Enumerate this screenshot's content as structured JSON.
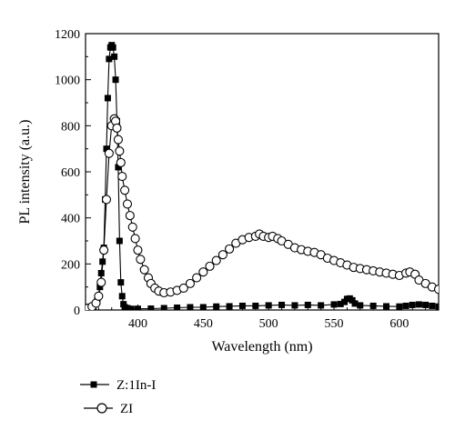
{
  "chart_data": {
    "type": "line",
    "xlabel": "Wavelength (nm)",
    "ylabel": "PL intensity (a.u.)",
    "xlim": [
      360,
      630
    ],
    "ylim": [
      0,
      1200
    ],
    "x_ticks": [
      400,
      450,
      500,
      550,
      600
    ],
    "y_ticks": [
      0,
      200,
      400,
      600,
      800,
      1000,
      1200
    ],
    "grid": false,
    "legend_position": "bottom-left",
    "series": [
      {
        "name": "Z:1In-I",
        "marker": "filled-square",
        "x": [
          362,
          366,
          369,
          371,
          372,
          373,
          374,
          375,
          376,
          377,
          378,
          379,
          380,
          381,
          382,
          383,
          384,
          385,
          386,
          387,
          388,
          389,
          390,
          392,
          395,
          400,
          410,
          420,
          430,
          440,
          450,
          460,
          470,
          480,
          490,
          500,
          510,
          520,
          530,
          540,
          550,
          555,
          558,
          560,
          562,
          564,
          566,
          570,
          580,
          590,
          600,
          605,
          610,
          615,
          620,
          625,
          630
        ],
        "y": [
          3,
          8,
          40,
          100,
          160,
          210,
          270,
          480,
          700,
          920,
          1090,
          1140,
          1150,
          1140,
          1100,
          1000,
          820,
          620,
          300,
          120,
          60,
          25,
          12,
          8,
          5,
          5,
          6,
          8,
          10,
          12,
          12,
          15,
          16,
          18,
          18,
          20,
          22,
          20,
          22,
          20,
          24,
          26,
          35,
          48,
          50,
          42,
          28,
          20,
          18,
          16,
          15,
          18,
          22,
          24,
          22,
          18,
          15
        ]
      },
      {
        "name": "ZI",
        "marker": "open-circle",
        "x": [
          362,
          365,
          368,
          370,
          372,
          374,
          376,
          378,
          380,
          382,
          383,
          384,
          385,
          386,
          387,
          388,
          390,
          392,
          394,
          396,
          398,
          400,
          402,
          405,
          408,
          410,
          413,
          416,
          420,
          425,
          430,
          435,
          440,
          445,
          450,
          455,
          460,
          465,
          470,
          475,
          480,
          485,
          490,
          493,
          496,
          500,
          503,
          507,
          510,
          515,
          520,
          525,
          530,
          535,
          540,
          545,
          550,
          555,
          560,
          565,
          570,
          575,
          580,
          585,
          590,
          595,
          600,
          605,
          608,
          612,
          615,
          620,
          625,
          630
        ],
        "y": [
          8,
          15,
          30,
          60,
          120,
          260,
          480,
          680,
          800,
          830,
          820,
          790,
          740,
          690,
          640,
          580,
          520,
          460,
          410,
          360,
          310,
          260,
          220,
          175,
          140,
          115,
          95,
          82,
          75,
          78,
          85,
          95,
          115,
          140,
          165,
          190,
          215,
          240,
          265,
          290,
          305,
          315,
          320,
          330,
          320,
          315,
          320,
          310,
          300,
          285,
          270,
          262,
          255,
          250,
          240,
          225,
          215,
          205,
          195,
          185,
          180,
          175,
          170,
          165,
          160,
          155,
          150,
          160,
          165,
          155,
          130,
          115,
          100,
          90
        ]
      }
    ]
  }
}
